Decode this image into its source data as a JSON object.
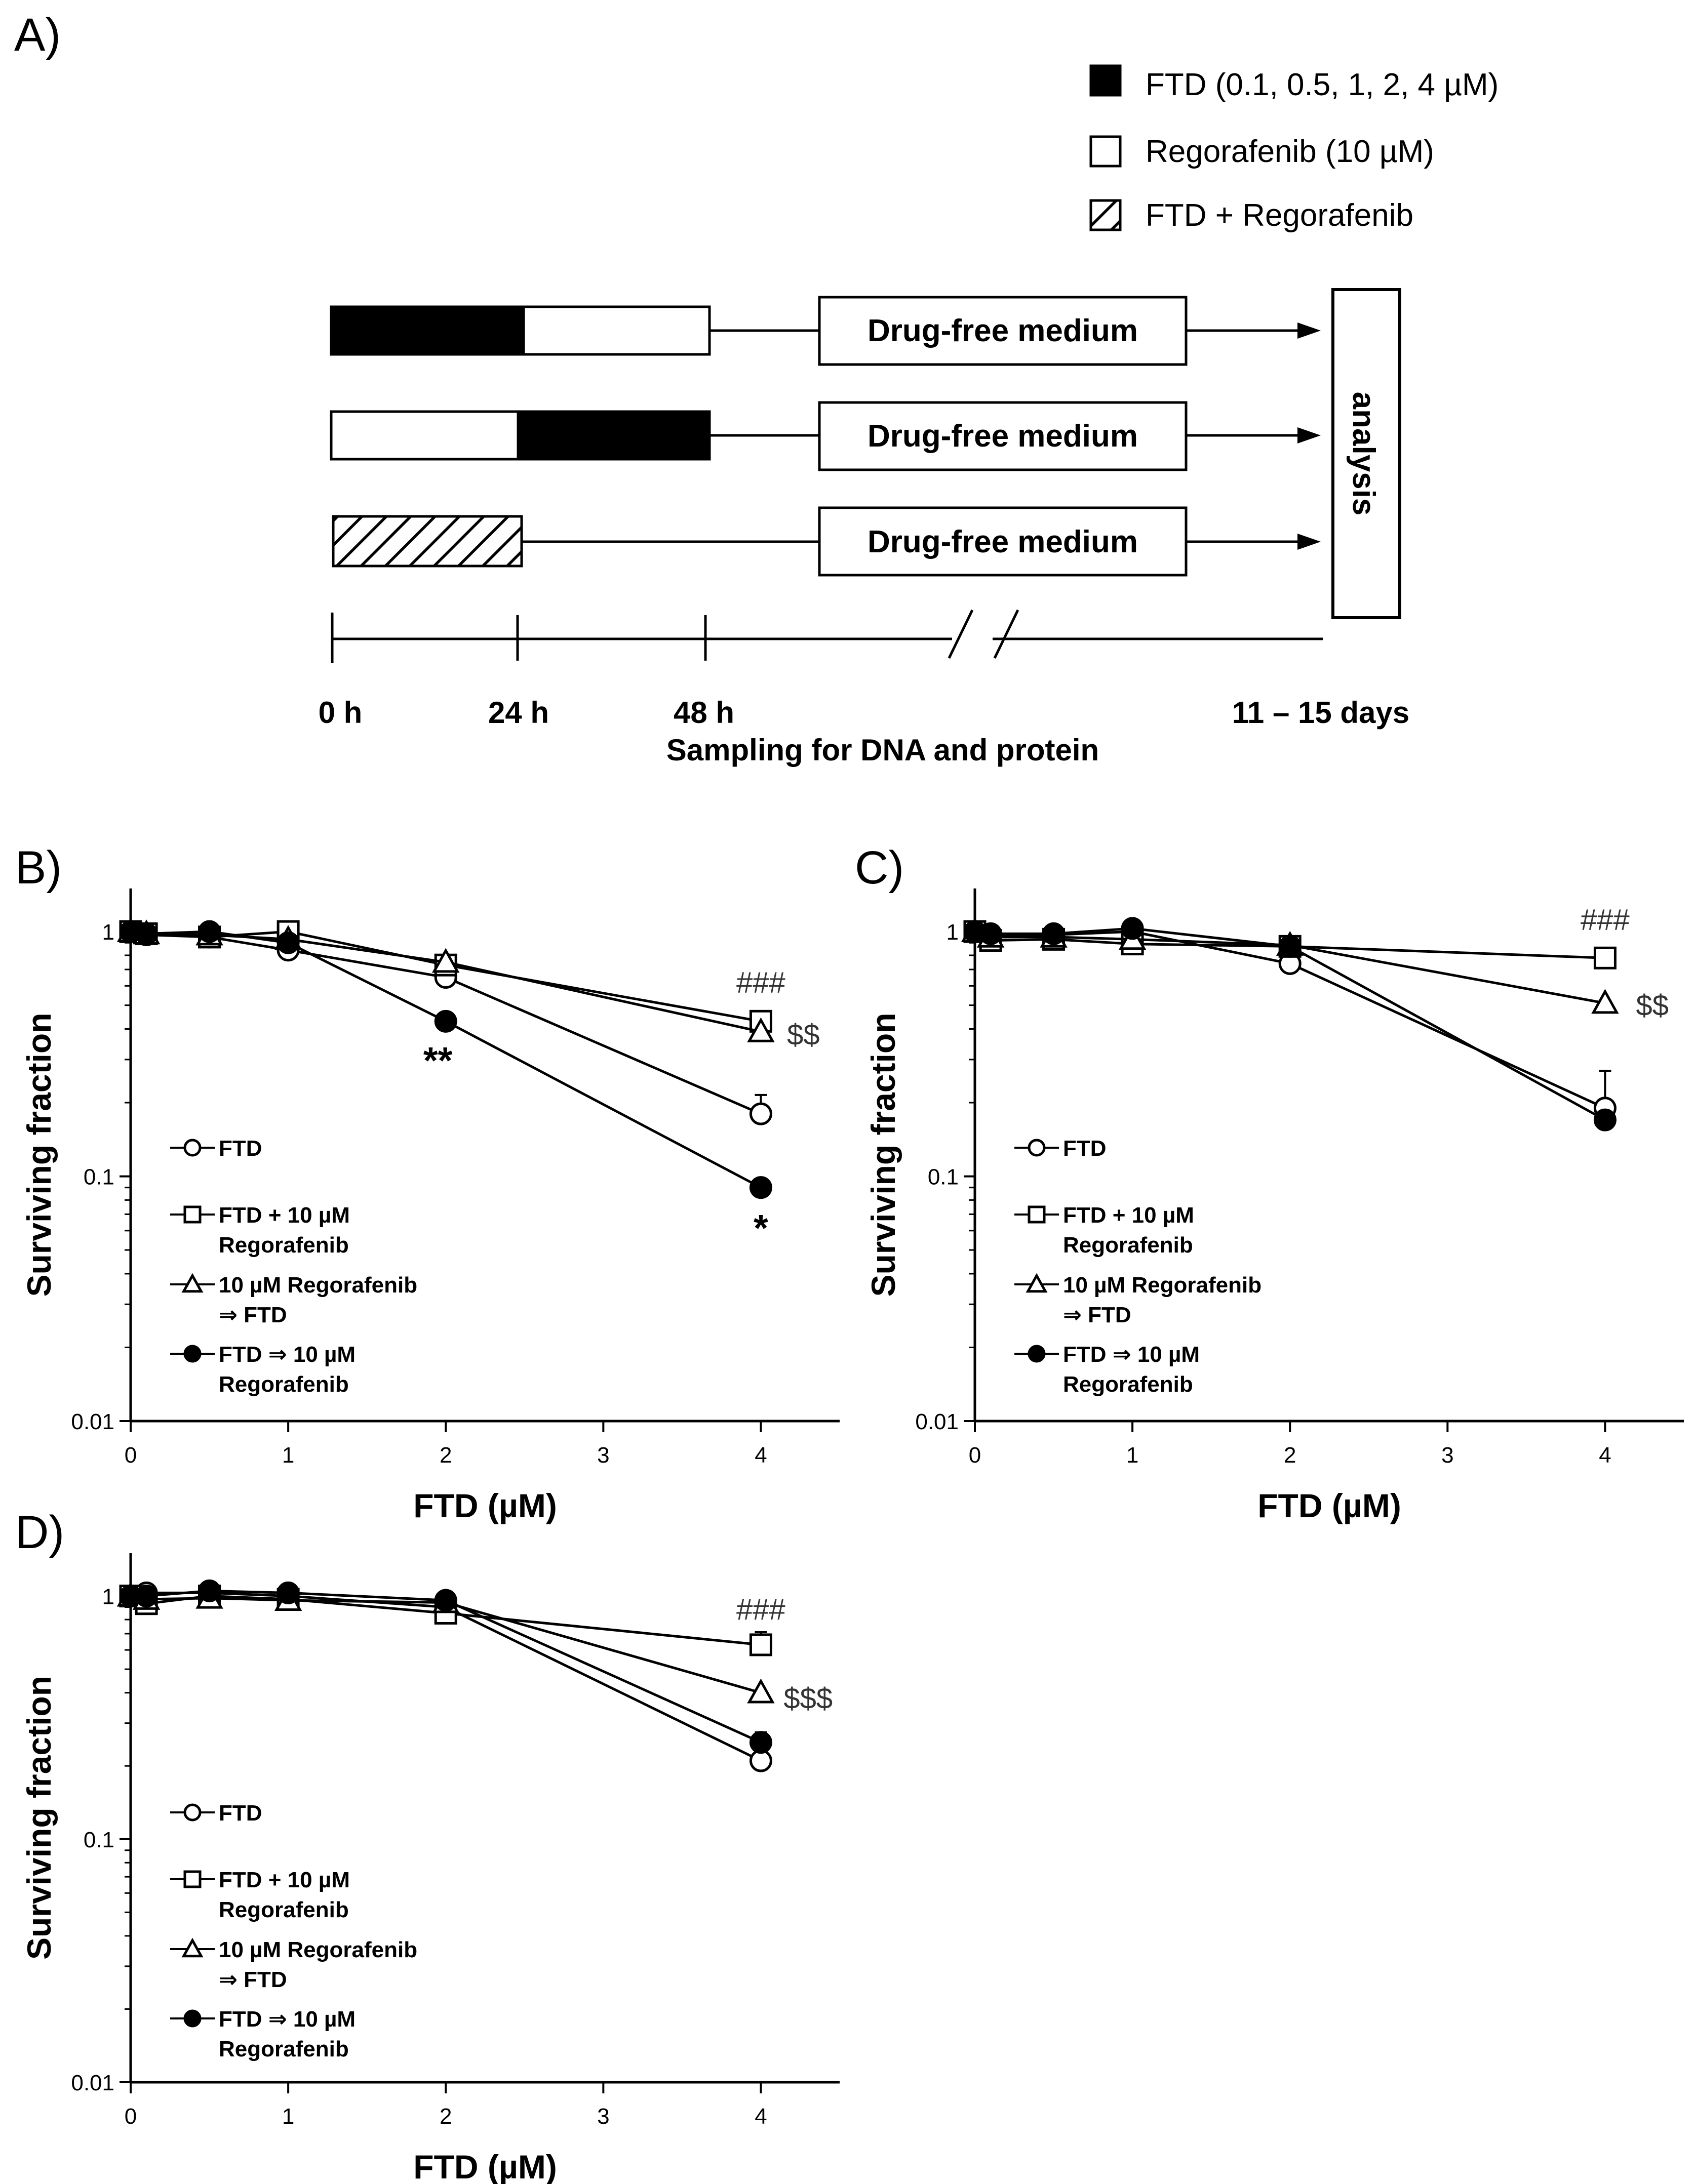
{
  "panel_a": {
    "panel_label": "A)",
    "legend": [
      {
        "key": "ftd",
        "label": "FTD (0.1, 0.5, 1, 2, 4 µM)"
      },
      {
        "key": "rego",
        "label": "Regorafenib (10 µM)"
      },
      {
        "key": "combo",
        "label": "FTD + Regorafenib"
      }
    ],
    "schemes": [
      {
        "first": "ftd",
        "second": "rego",
        "box_label": "Drug-free medium"
      },
      {
        "first": "rego",
        "second": "ftd",
        "box_label": "Drug-free medium"
      },
      {
        "first": "combo",
        "second": null,
        "box_label": "Drug-free medium"
      }
    ],
    "analysis_label": "analysis",
    "timeline": {
      "ticks": [
        "0 h",
        "24 h",
        "48 h"
      ],
      "end_label": "11 – 15 days",
      "caption": "Sampling for DNA and protein"
    }
  },
  "chart_data": [
    {
      "panel_label": "B)",
      "type": "line",
      "xlabel": "FTD (µM)",
      "ylabel": "Surviving fraction",
      "xlim": [
        0,
        4.5
      ],
      "ylim": [
        0.01,
        1.5
      ],
      "yscale": "log",
      "xticks": [
        0,
        1,
        2,
        3,
        4
      ],
      "yticks": [
        {
          "v": 0.01,
          "label": "0.01"
        },
        {
          "v": 0.1,
          "label": "0.1"
        },
        {
          "v": 1,
          "label": "1"
        }
      ],
      "x": [
        0,
        0.1,
        0.5,
        1,
        2,
        4
      ],
      "series": [
        {
          "name": "FTD",
          "marker": "circle-open",
          "values": [
            1.0,
            0.97,
            0.95,
            0.84,
            0.65,
            0.18
          ],
          "err": [
            0,
            0,
            0,
            0,
            0,
            0.035
          ]
        },
        {
          "name": "FTD + 10 µM Regorafenib",
          "marker": "square-open",
          "values": [
            1.0,
            0.98,
            0.95,
            1.0,
            0.73,
            0.43
          ],
          "err": [
            0,
            0,
            0,
            0,
            0,
            0
          ]
        },
        {
          "name": "10 µM Regorafenib ⇒ FTD",
          "marker": "triangle-open",
          "values": [
            1.0,
            0.98,
            0.97,
            0.93,
            0.75,
            0.39
          ],
          "err": [
            0,
            0,
            0,
            0,
            0,
            0
          ]
        },
        {
          "name": "FTD ⇒ 10 µM Regorafenib",
          "marker": "circle-filled",
          "values": [
            1.0,
            0.98,
            1.0,
            0.9,
            0.43,
            0.09
          ],
          "err": [
            0,
            0,
            0,
            0,
            0,
            0
          ]
        }
      ],
      "legend": [
        {
          "line1": "FTD",
          "line2": ""
        },
        {
          "line1": "FTD + 10 µM",
          "line2": "Regorafenib"
        },
        {
          "line1": "10 µM Regorafenib",
          "line2": "⇒ FTD"
        },
        {
          "line1": "FTD ⇒ 10 µM",
          "line2": "Regorafenib"
        }
      ],
      "annotations": [
        {
          "text": "###",
          "x": 4.0,
          "y": 0.62,
          "style": "plain"
        },
        {
          "text": "$$",
          "x": 4.27,
          "y": 0.38,
          "style": "plain"
        },
        {
          "text": "**",
          "x": 1.95,
          "y": 0.29,
          "style": "bold"
        },
        {
          "text": "*",
          "x": 4.0,
          "y": 0.06,
          "style": "bold"
        }
      ]
    },
    {
      "panel_label": "C)",
      "type": "line",
      "xlabel": "FTD (µM)",
      "ylabel": "Surviving fraction",
      "xlim": [
        0,
        4.5
      ],
      "ylim": [
        0.01,
        1.5
      ],
      "yscale": "log",
      "xticks": [
        0,
        1,
        2,
        3,
        4
      ],
      "yticks": [
        {
          "v": 0.01,
          "label": "0.01"
        },
        {
          "v": 0.1,
          "label": "0.1"
        },
        {
          "v": 1,
          "label": "1"
        }
      ],
      "x": [
        0,
        0.1,
        0.5,
        1,
        2,
        4
      ],
      "series": [
        {
          "name": "FTD",
          "marker": "circle-open",
          "values": [
            1.0,
            0.97,
            0.97,
            1.0,
            0.74,
            0.19
          ],
          "err": [
            0,
            0,
            0,
            0,
            0,
            0.08
          ]
        },
        {
          "name": "FTD + 10 µM Regorafenib",
          "marker": "square-open",
          "values": [
            1.0,
            0.92,
            0.93,
            0.89,
            0.87,
            0.78
          ],
          "err": [
            0,
            0,
            0,
            0,
            0,
            0
          ]
        },
        {
          "name": "10 µM Regorafenib ⇒ FTD",
          "marker": "triangle-open",
          "values": [
            1.0,
            0.95,
            0.95,
            0.93,
            0.88,
            0.51
          ],
          "err": [
            0,
            0,
            0,
            0,
            0,
            0
          ]
        },
        {
          "name": "FTD ⇒ 10 µM Regorafenib",
          "marker": "circle-filled",
          "values": [
            1.0,
            0.98,
            0.98,
            1.03,
            0.87,
            0.17
          ],
          "err": [
            0,
            0,
            0,
            0,
            0,
            0
          ]
        }
      ],
      "legend": [
        {
          "line1": "FTD",
          "line2": ""
        },
        {
          "line1": "FTD + 10 µM",
          "line2": "Regorafenib"
        },
        {
          "line1": "10 µM Regorafenib",
          "line2": "⇒ FTD"
        },
        {
          "line1": "FTD ⇒ 10 µM",
          "line2": "Regorafenib"
        }
      ],
      "annotations": [
        {
          "text": "###",
          "x": 4.0,
          "y": 1.12,
          "style": "plain"
        },
        {
          "text": "$$",
          "x": 4.3,
          "y": 0.5,
          "style": "plain"
        }
      ]
    },
    {
      "panel_label": "D)",
      "type": "line",
      "xlabel": "FTD (µM)",
      "ylabel": "Surviving fraction",
      "xlim": [
        0,
        4.5
      ],
      "ylim": [
        0.01,
        1.5
      ],
      "yscale": "log",
      "xticks": [
        0,
        1,
        2,
        3,
        4
      ],
      "yticks": [
        {
          "v": 0.01,
          "label": "0.01"
        },
        {
          "v": 0.1,
          "label": "0.1"
        },
        {
          "v": 1,
          "label": "1"
        }
      ],
      "x": [
        0,
        0.1,
        0.5,
        1,
        2,
        4
      ],
      "series": [
        {
          "name": "FTD",
          "marker": "circle-open",
          "values": [
            1.0,
            1.03,
            1.03,
            1.0,
            0.9,
            0.21
          ],
          "err": [
            0,
            0,
            0,
            0,
            0,
            0
          ]
        },
        {
          "name": "FTD + 10 µM Regorafenib",
          "marker": "square-open",
          "values": [
            1.0,
            0.93,
            1.0,
            0.97,
            0.85,
            0.63
          ],
          "err": [
            0,
            0,
            0,
            0,
            0,
            0.08
          ]
        },
        {
          "name": "10 µM Regorafenib ⇒ FTD",
          "marker": "triangle-open",
          "values": [
            1.0,
            0.97,
            0.98,
            0.96,
            0.94,
            0.4
          ],
          "err": [
            0,
            0,
            0,
            0,
            0,
            0
          ]
        },
        {
          "name": "FTD ⇒ 10 µM Regorafenib",
          "marker": "circle-filled",
          "values": [
            1.0,
            1.0,
            1.05,
            1.03,
            0.96,
            0.25
          ],
          "err": [
            0,
            0,
            0,
            0,
            0,
            0.025
          ]
        }
      ],
      "legend": [
        {
          "line1": "FTD",
          "line2": ""
        },
        {
          "line1": "FTD + 10 µM",
          "line2": "Regorafenib"
        },
        {
          "line1": "10 µM Regorafenib",
          "line2": "⇒ FTD"
        },
        {
          "line1": "FTD ⇒ 10 µM",
          "line2": "Regorafenib"
        }
      ],
      "annotations": [
        {
          "text": "###",
          "x": 4.0,
          "y": 0.88,
          "style": "plain"
        },
        {
          "text": "$$$",
          "x": 4.3,
          "y": 0.38,
          "style": "plain"
        }
      ]
    }
  ]
}
